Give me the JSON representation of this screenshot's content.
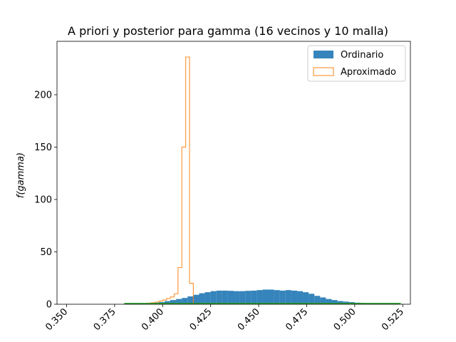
{
  "chart_data": {
    "type": "histogram",
    "title": "A priori y posterior para gamma (16 vecinos y 10 malla)",
    "xlabel": "",
    "ylabel": "f(gamma)",
    "xlim": [
      0.345,
      0.529
    ],
    "ylim": [
      0,
      251
    ],
    "xticks": [
      "0.350",
      "0.375",
      "0.400",
      "0.425",
      "0.450",
      "0.475",
      "0.500",
      "0.525"
    ],
    "yticks": [
      "0",
      "50",
      "100",
      "150",
      "200"
    ],
    "legend_position": "top-right",
    "series": [
      {
        "name": "Ordinario",
        "style": "filled",
        "color": "#1f77b4",
        "bin_edges": [
          0.38,
          0.383,
          0.386,
          0.389,
          0.392,
          0.395,
          0.398,
          0.401,
          0.404,
          0.407,
          0.41,
          0.413,
          0.416,
          0.419,
          0.422,
          0.425,
          0.428,
          0.431,
          0.434,
          0.437,
          0.44,
          0.443,
          0.446,
          0.449,
          0.452,
          0.455,
          0.458,
          0.461,
          0.464,
          0.467,
          0.47,
          0.473,
          0.476,
          0.479,
          0.482,
          0.485,
          0.488,
          0.491,
          0.494,
          0.497,
          0.5,
          0.503,
          0.506,
          0.509,
          0.512,
          0.515,
          0.518,
          0.521,
          0.524
        ],
        "values": [
          0.3,
          0.4,
          0.6,
          0.8,
          1.0,
          1.5,
          2.0,
          3.0,
          4.0,
          5.0,
          6.0,
          7.5,
          9.0,
          10.5,
          11.5,
          12.5,
          13.0,
          13.0,
          12.8,
          12.5,
          12.5,
          12.8,
          13.0,
          13.5,
          14.0,
          14.0,
          13.5,
          13.0,
          13.5,
          13.0,
          12.5,
          11.5,
          10.0,
          8.0,
          6.5,
          5.0,
          4.0,
          3.0,
          2.5,
          2.0,
          1.5,
          1.2,
          1.0,
          0.8,
          0.6,
          0.5,
          0.4,
          0.3
        ]
      },
      {
        "name": "Aproximado",
        "style": "step",
        "color": "#ff7f0e",
        "bin_edges": [
          0.39,
          0.392,
          0.394,
          0.396,
          0.398,
          0.4,
          0.402,
          0.404,
          0.406,
          0.408,
          0.41,
          0.412,
          0.414,
          0.416
        ],
        "values": [
          0.5,
          1.0,
          1.5,
          2.0,
          3.0,
          4.0,
          5.5,
          7.0,
          10.0,
          35.0,
          150.0,
          236.0,
          20.0
        ]
      },
      {
        "name": "",
        "style": "line",
        "color": "#2ca02c",
        "x": [
          0.38,
          0.524
        ],
        "y": [
          0.6,
          0.6
        ]
      }
    ]
  }
}
